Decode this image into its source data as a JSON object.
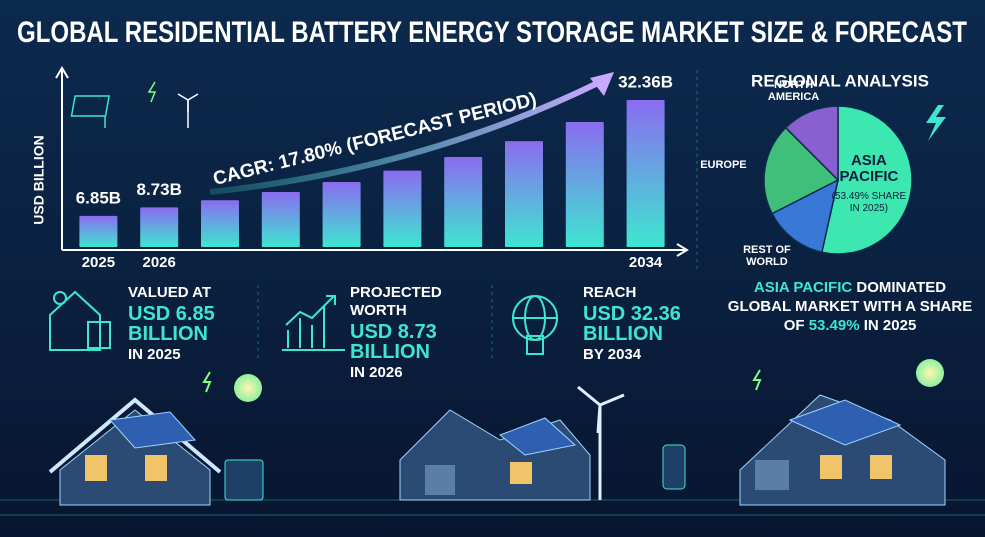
{
  "title": "GLOBAL RESIDENTIAL BATTERY ENERGY STORAGE MARKET SIZE & FORECAST",
  "chart_data": [
    {
      "type": "bar",
      "y_label": "USD BILLION",
      "annotation": "CAGR: 17.80% (FORECAST PERIOD)",
      "categories": [
        "2025",
        "2026",
        null,
        null,
        null,
        null,
        null,
        null,
        null,
        "2034"
      ],
      "values": [
        6.85,
        8.73,
        10.3,
        12.1,
        14.3,
        16.8,
        19.8,
        23.3,
        27.5,
        32.36
      ],
      "value_labels": [
        "6.85B",
        "8.73B",
        null,
        null,
        null,
        null,
        null,
        null,
        null,
        "32.36B"
      ],
      "colors": [
        "#3ee6d0",
        "#8a6cf0"
      ],
      "ylim": [
        0,
        34
      ]
    },
    {
      "type": "pie",
      "title": "REGIONAL ANALYSIS",
      "annotation": "(53.49% SHARE IN 2025)",
      "categories": [
        "ASIA PACIFIC",
        "REST OF WORLD",
        "EUROPE",
        "NORTH AMERICA"
      ],
      "values": [
        53.49,
        14,
        20,
        12.5
      ],
      "colors": [
        "#3de8b0",
        "#3a78d8",
        "#3fbf7a",
        "#8a5fd0"
      ]
    }
  ],
  "stats": [
    {
      "label": "VALUED AT",
      "value": "USD 6.85 BILLION",
      "suffix": "IN 2025"
    },
    {
      "label": "PROJECTED WORTH",
      "value": "USD 8.73 BILLION",
      "suffix": "IN 2026"
    },
    {
      "label": "REACH",
      "value": "USD 32.36 BILLION",
      "suffix": "BY 2034"
    }
  ],
  "summary": [
    "ASIA PACIFIC",
    "DOMINATED GLOBAL MARKET WITH A SHARE OF",
    "53.49%",
    "IN 2025"
  ]
}
